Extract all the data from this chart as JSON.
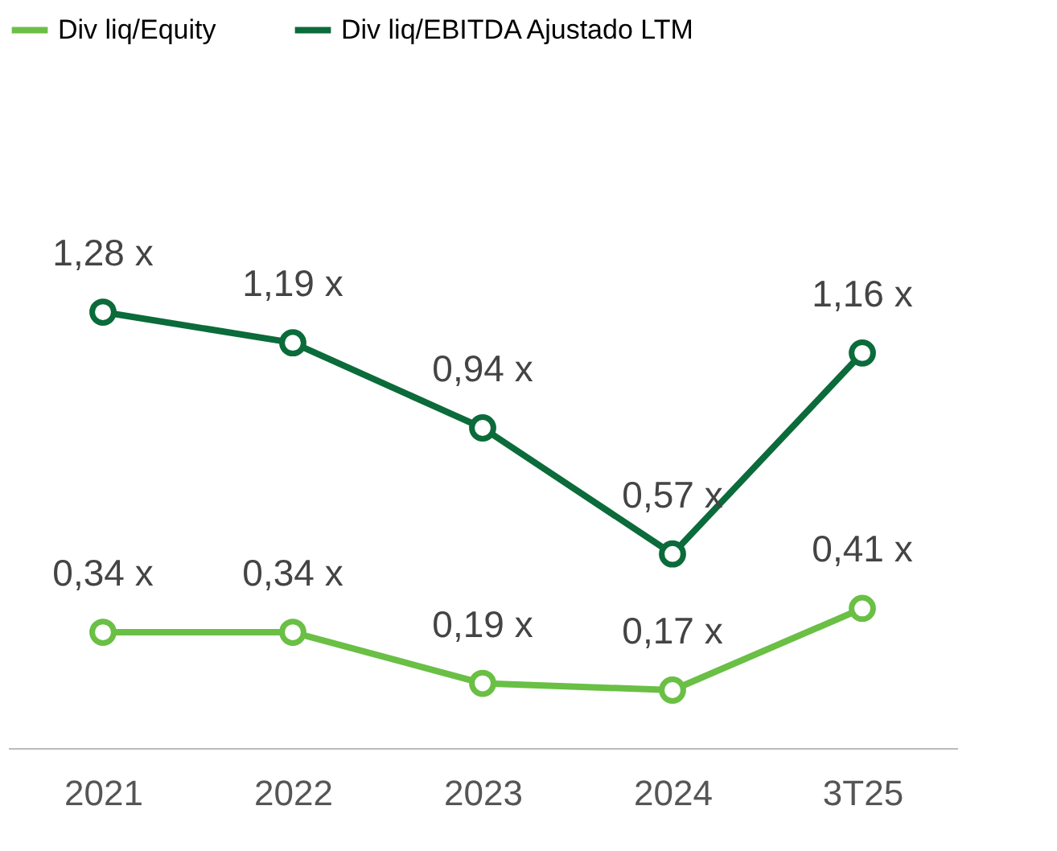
{
  "chart_data": {
    "type": "line",
    "categories": [
      "2021",
      "2022",
      "2023",
      "2024",
      "3T25"
    ],
    "series": [
      {
        "name": "Div liq/Equity",
        "color": "#6abf45",
        "values": [
          0.34,
          0.34,
          0.19,
          0.17,
          0.41
        ],
        "value_labels": [
          "0,34 x",
          "0,34 x",
          "0,19 x",
          "0,17 x",
          "0,41 x"
        ]
      },
      {
        "name": "Div liq/EBITDA Ajustado LTM",
        "color": "#0b6b3a",
        "values": [
          1.28,
          1.19,
          0.94,
          0.57,
          1.16
        ],
        "value_labels": [
          "1,28 x",
          "1,19 x",
          "0,94 x",
          "0,57 x",
          "1,16 x"
        ]
      }
    ],
    "marker": "circle",
    "line_style": "solid",
    "legend": "top",
    "grid": false
  }
}
